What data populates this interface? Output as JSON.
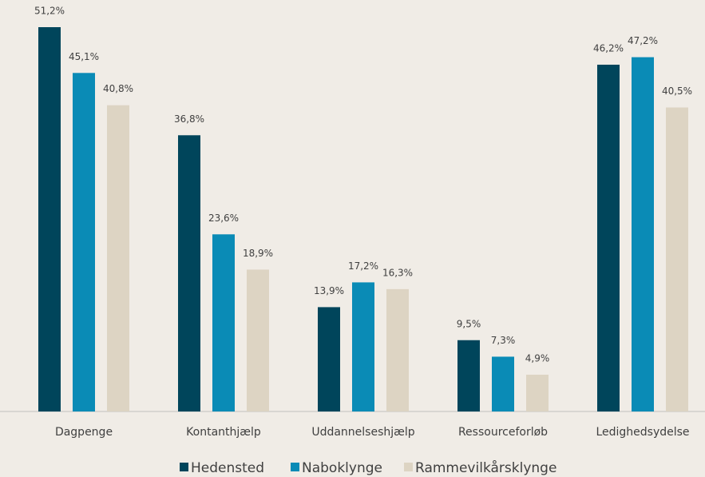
{
  "chart_data": {
    "type": "bar",
    "categories": [
      "Dagpenge",
      "Kontanthjælp",
      "Uddannelseshjælp",
      "Ressourceforløb",
      "Ledighedsydelse"
    ],
    "series": [
      {
        "name": "Hedensted",
        "color": "#00455b",
        "values": [
          51.2,
          36.8,
          13.9,
          9.5,
          46.2
        ],
        "value_labels": [
          "51,2%",
          "36,8%",
          "13,9%",
          "9,5%",
          "46,2%"
        ]
      },
      {
        "name": "Naboklynge",
        "color": "#0a8bb6",
        "values": [
          45.1,
          23.6,
          17.2,
          7.3,
          47.2
        ],
        "value_labels": [
          "45,1%",
          "23,6%",
          "17,2%",
          "7,3%",
          "47,2%"
        ]
      },
      {
        "name": "Rammevilkårsklynge",
        "color": "#ddd4c3",
        "values": [
          40.8,
          18.9,
          16.3,
          4.9,
          40.5
        ],
        "value_labels": [
          "40,8%",
          "18,9%",
          "16,3%",
          "4,9%",
          "40,5%"
        ]
      }
    ],
    "legend": "bottom"
  }
}
